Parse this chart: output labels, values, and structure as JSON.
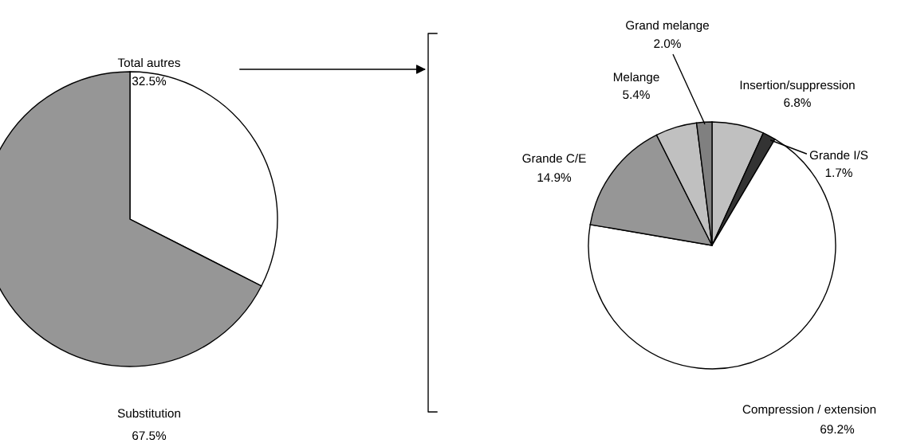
{
  "chart_data": [
    {
      "type": "pie",
      "categories": [
        "Total autres",
        "Substitution"
      ],
      "values": [
        32.5,
        67.5
      ],
      "colors": [
        "#ffffff",
        "#969696"
      ],
      "value_labels": [
        "32.5%",
        "67.5%"
      ]
    },
    {
      "type": "pie",
      "categories": [
        "Insertion/suppression",
        "Grande I/S",
        "Compression / extension",
        "Grande C/E",
        "Melange",
        "Grand melange"
      ],
      "values": [
        6.8,
        1.7,
        69.2,
        14.9,
        5.4,
        2.0
      ],
      "colors": [
        "#c0c0c0",
        "#333333",
        "#ffffff",
        "#969696",
        "#c0c0c0",
        "#808080"
      ],
      "value_labels": [
        "6.8%",
        "1.7%",
        "69.2%",
        "14.9%",
        "5.4%",
        "2.0%"
      ]
    }
  ]
}
